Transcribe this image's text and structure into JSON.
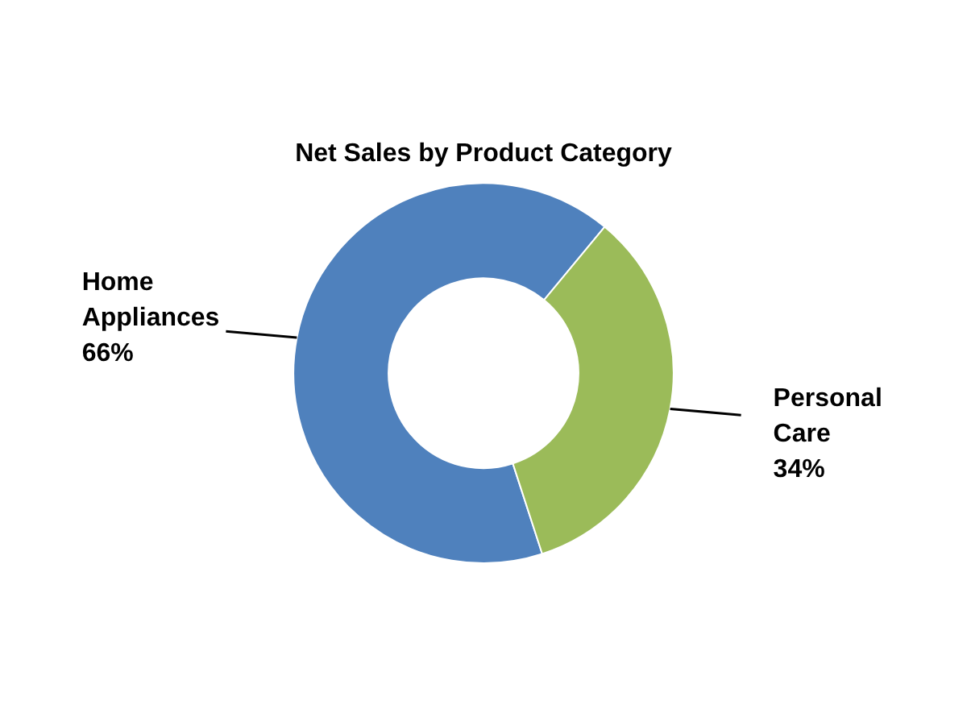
{
  "chart_data": {
    "type": "donut",
    "title": "Net Sales by Product Category",
    "categories": [
      "Home Appliances",
      "Personal Care"
    ],
    "values": [
      66,
      34
    ],
    "value_labels": [
      "66%",
      "34%"
    ],
    "colors": [
      "#4f81bd",
      "#9bbb59"
    ],
    "legend": false
  }
}
